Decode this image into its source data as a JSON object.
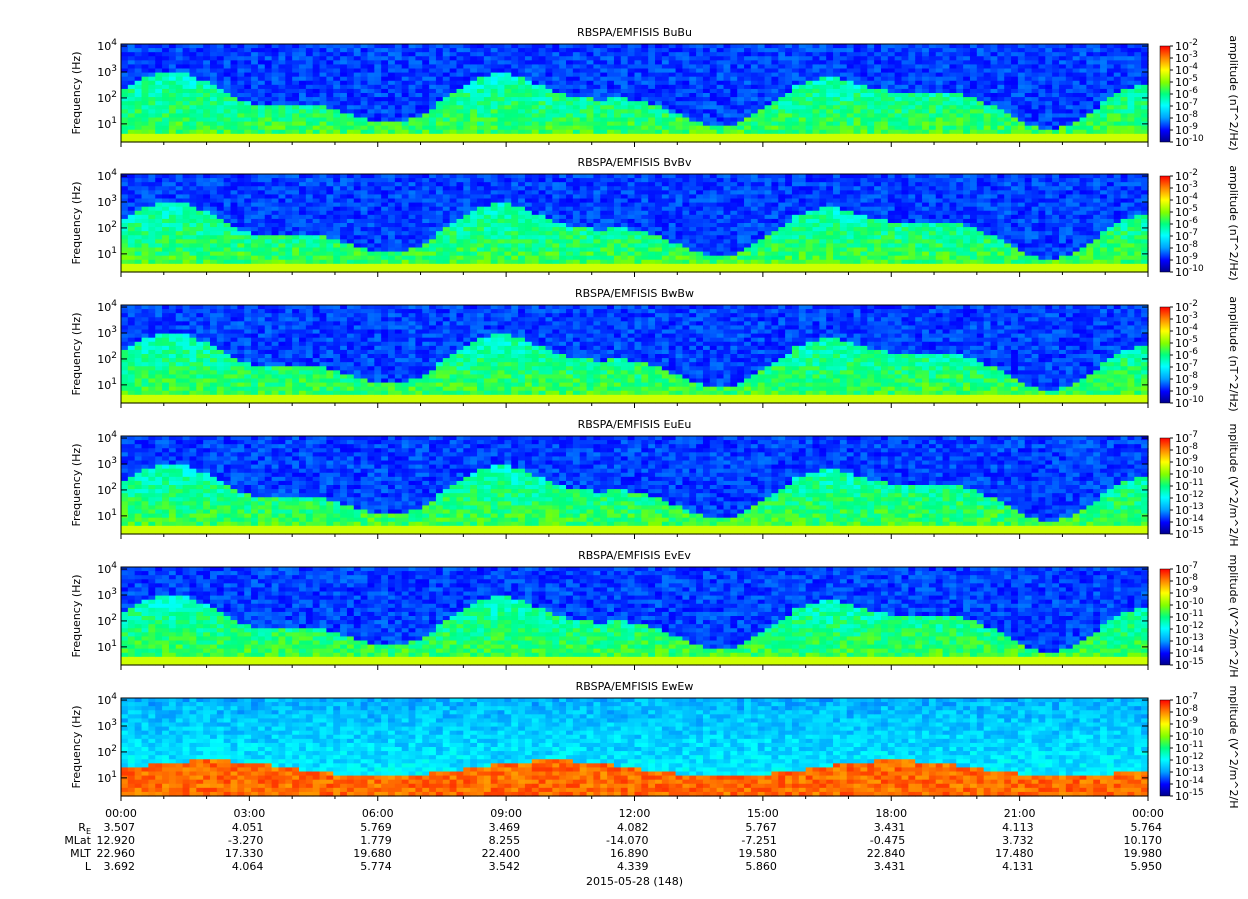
{
  "chart_data": {
    "type": "heatmap",
    "date_label": "2015-05-28 (148)",
    "panels": [
      {
        "title": "RBSPA/EMFISIS  BuBu",
        "ylabel": "Frequency (Hz)",
        "ylim": [
          2,
          12000
        ],
        "yscale": "log",
        "y_ticks": [
          "10^1",
          "10^2",
          "10^3",
          "10^4"
        ],
        "colorbar": {
          "label": "amplitude (nT^2/Hz)",
          "range": [
            -10,
            -2
          ],
          "ticks": [
            "10^-10",
            "10^-9",
            "10^-8",
            "10^-7",
            "10^-6",
            "10^-5",
            "10^-4",
            "10^-3",
            "10^-2"
          ]
        }
      },
      {
        "title": "RBSPA/EMFISIS  BvBv",
        "ylabel": "Frequency (Hz)",
        "ylim": [
          2,
          12000
        ],
        "yscale": "log",
        "y_ticks": [
          "10^1",
          "10^2",
          "10^3",
          "10^4"
        ],
        "colorbar": {
          "label": "amplitude (nT^2/Hz)",
          "range": [
            -10,
            -2
          ],
          "ticks": [
            "10^-10",
            "10^-9",
            "10^-8",
            "10^-7",
            "10^-6",
            "10^-5",
            "10^-4",
            "10^-3",
            "10^-2"
          ]
        }
      },
      {
        "title": "RBSPA/EMFISIS  BwBw",
        "ylabel": "Frequency (Hz)",
        "ylim": [
          2,
          12000
        ],
        "yscale": "log",
        "y_ticks": [
          "10^1",
          "10^2",
          "10^3",
          "10^4"
        ],
        "colorbar": {
          "label": "amplitude (nT^2/Hz)",
          "range": [
            -10,
            -2
          ],
          "ticks": [
            "10^-10",
            "10^-9",
            "10^-8",
            "10^-7",
            "10^-6",
            "10^-5",
            "10^-4",
            "10^-3",
            "10^-2"
          ]
        }
      },
      {
        "title": "RBSPA/EMFISIS  EuEu",
        "ylabel": "Frequency (Hz)",
        "ylim": [
          2,
          12000
        ],
        "yscale": "log",
        "y_ticks": [
          "10^1",
          "10^2",
          "10^3",
          "10^4"
        ],
        "colorbar": {
          "label": "mplitude (V^2/m^2/H",
          "range": [
            -15,
            -7
          ],
          "ticks": [
            "10^-15",
            "10^-14",
            "10^-13",
            "10^-12",
            "10^-11",
            "10^-10",
            "10^-9",
            "10^-8",
            "10^-7"
          ]
        }
      },
      {
        "title": "RBSPA/EMFISIS  EvEv",
        "ylabel": "Frequency (Hz)",
        "ylim": [
          2,
          12000
        ],
        "yscale": "log",
        "y_ticks": [
          "10^1",
          "10^2",
          "10^3",
          "10^4"
        ],
        "colorbar": {
          "label": "mplitude (V^2/m^2/H",
          "range": [
            -15,
            -7
          ],
          "ticks": [
            "10^-15",
            "10^-14",
            "10^-13",
            "10^-12",
            "10^-11",
            "10^-10",
            "10^-9",
            "10^-8",
            "10^-7"
          ]
        }
      },
      {
        "title": "RBSPA/EMFISIS  EwEw",
        "ylabel": "Frequency (Hz)",
        "ylim": [
          2,
          12000
        ],
        "yscale": "log",
        "y_ticks": [
          "10^1",
          "10^2",
          "10^3",
          "10^4"
        ],
        "colorbar": {
          "label": "mplitude (V^2/m^2/H",
          "range": [
            -15,
            -7
          ],
          "ticks": [
            "10^-15",
            "10^-14",
            "10^-13",
            "10^-12",
            "10^-11",
            "10^-10",
            "10^-9",
            "10^-8",
            "10^-7"
          ]
        }
      }
    ],
    "x_ticks": [
      "00:00",
      "03:00",
      "06:00",
      "09:00",
      "12:00",
      "15:00",
      "18:00",
      "21:00",
      "00:00"
    ],
    "ephemeris": [
      {
        "label": "R",
        "sub": "E",
        "values": [
          "3.507",
          "4.051",
          "5.769",
          "3.469",
          "4.082",
          "5.767",
          "3.431",
          "4.113",
          "5.764"
        ]
      },
      {
        "label": "MLat",
        "sub": "",
        "values": [
          "12.920",
          "-3.270",
          "1.779",
          "8.255",
          "-14.070",
          "-7.251",
          "-0.475",
          "3.732",
          "10.170"
        ]
      },
      {
        "label": "MLT",
        "sub": "",
        "values": [
          "22.960",
          "17.330",
          "19.680",
          "22.400",
          "16.890",
          "19.580",
          "22.840",
          "17.480",
          "19.980"
        ]
      },
      {
        "label": "L",
        "sub": "",
        "values": [
          "3.692",
          "4.064",
          "5.774",
          "3.542",
          "4.339",
          "5.860",
          "3.431",
          "4.131",
          "5.950"
        ]
      }
    ]
  }
}
